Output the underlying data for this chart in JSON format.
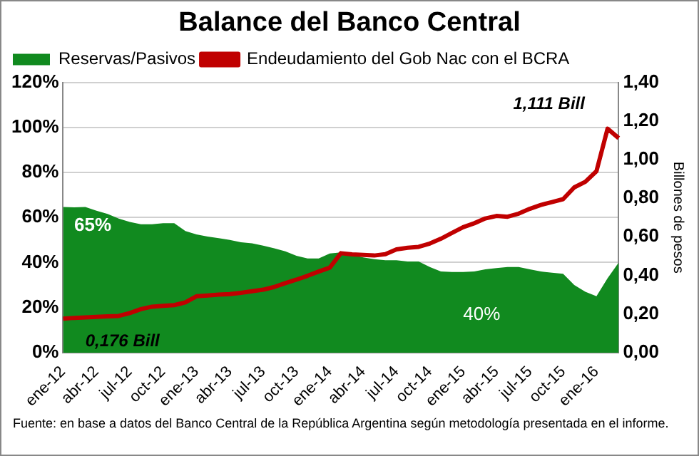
{
  "chart_data": {
    "type": "area",
    "title": "Balance del Banco Central",
    "y2label": "Billones de pesos",
    "categories": [
      "ene-12",
      null,
      null,
      "abr-12",
      null,
      null,
      "jul-12",
      null,
      null,
      "oct-12",
      null,
      null,
      "ene-13",
      null,
      null,
      "abr-13",
      null,
      null,
      "jul-13",
      null,
      null,
      "oct-13",
      null,
      null,
      "ene-14",
      null,
      null,
      "abr-14",
      null,
      null,
      "jul-14",
      null,
      null,
      "oct-14",
      null,
      null,
      "ene-15",
      null,
      null,
      "abr-15",
      null,
      null,
      "jul-15",
      null,
      null,
      "oct-15",
      null,
      null,
      "ene-16",
      null,
      null
    ],
    "series": [
      {
        "name": "Reservas/Pasivos",
        "color": "#118a1f",
        "values": [
          64.7,
          64.5,
          64.7,
          63,
          61.6,
          59.5,
          58,
          57,
          57,
          57.5,
          57.5,
          54,
          52.5,
          51.5,
          50.8,
          50,
          49,
          48.5,
          47.5,
          46.3,
          45,
          43,
          41.8,
          41.8,
          44,
          44.5,
          43.5,
          42.3,
          41.5,
          41,
          41,
          40.5,
          40.5,
          38,
          36,
          35.8,
          35.8,
          36,
          37,
          37.5,
          38,
          38,
          37,
          36,
          35.5,
          35,
          30,
          27,
          25,
          33,
          40
        ]
      },
      {
        "name": "Endeudamiento del Gob Nac con el BCRA",
        "type": "line",
        "axis": "y2",
        "color": "#c00000",
        "values": [
          0.176,
          0.18,
          0.182,
          0.185,
          0.188,
          0.19,
          0.205,
          0.225,
          0.238,
          0.242,
          0.246,
          0.26,
          0.292,
          0.296,
          0.3,
          0.303,
          0.31,
          0.318,
          0.326,
          0.34,
          0.36,
          0.378,
          0.398,
          0.42,
          0.44,
          0.515,
          0.509,
          0.506,
          0.503,
          0.51,
          0.535,
          0.543,
          0.548,
          0.565,
          0.59,
          0.62,
          0.65,
          0.67,
          0.695,
          0.708,
          0.704,
          0.72,
          0.745,
          0.765,
          0.78,
          0.795,
          0.856,
          0.885,
          0.94,
          1.16,
          1.111
        ]
      }
    ],
    "ylim": [
      0,
      120
    ],
    "yticks": [
      {
        "value": 0,
        "label": "0%"
      },
      {
        "value": 20,
        "label": "20%"
      },
      {
        "value": 40,
        "label": "40%"
      },
      {
        "value": 60,
        "label": "60%"
      },
      {
        "value": 80,
        "label": "80%"
      },
      {
        "value": 100,
        "label": "100%"
      },
      {
        "value": 120,
        "label": "120%"
      }
    ],
    "y2lim": [
      0,
      1.4
    ],
    "y2ticks": [
      {
        "value": 0,
        "label": "0,00"
      },
      {
        "value": 0.2,
        "label": "0,20"
      },
      {
        "value": 0.4,
        "label": "0,40"
      },
      {
        "value": 0.6,
        "label": "0,60"
      },
      {
        "value": 0.8,
        "label": "0,80"
      },
      {
        "value": 1,
        "label": "1,00"
      },
      {
        "value": 1.2,
        "label": "1,20"
      },
      {
        "value": 1.4,
        "label": "1,40"
      }
    ],
    "grid": "y",
    "legend": "top left",
    "marker": "none",
    "line_style": "solid",
    "annotations": [
      "65%",
      "40%",
      "0,176 Bill",
      "1,111 Bill",
      "Fuente: en base a datos del Banco Central de la República Argentina según metodología presentada en el informe."
    ]
  }
}
